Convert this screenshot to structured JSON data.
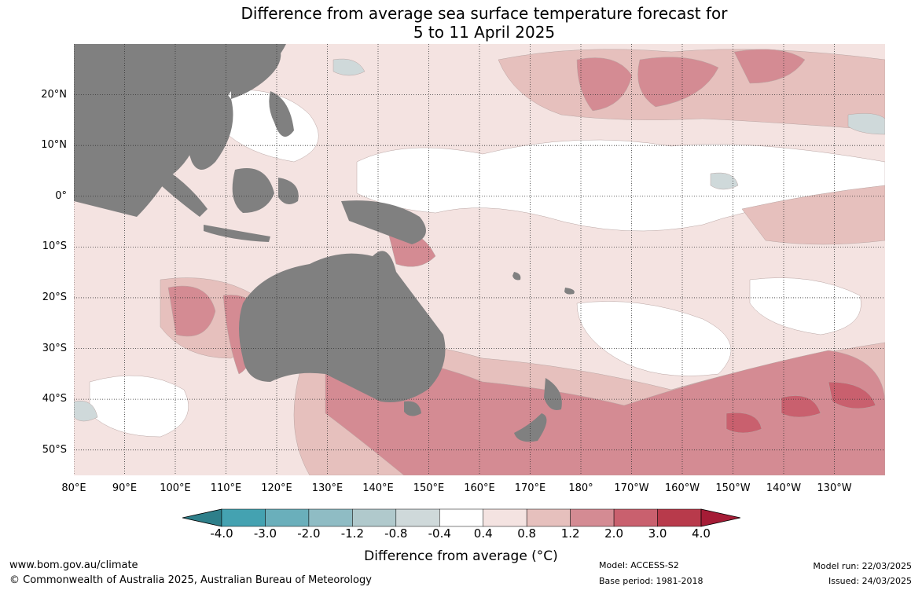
{
  "title": {
    "line1": "Difference from average sea surface temperature forecast for",
    "line2": "5 to 11 April 2025"
  },
  "map": {
    "lat_labels": [
      "20°N",
      "10°N",
      "0°",
      "10°S",
      "20°S",
      "30°S",
      "40°S",
      "50°S"
    ],
    "lon_labels": [
      "80°E",
      "90°E",
      "100°E",
      "110°E",
      "120°E",
      "130°E",
      "140°E",
      "150°E",
      "160°E",
      "170°E",
      "180°",
      "170°W",
      "160°W",
      "150°W",
      "140°W",
      "130°W"
    ],
    "lat_values": [
      20,
      10,
      0,
      -10,
      -20,
      -30,
      -40,
      -50
    ],
    "lon_values": [
      80,
      90,
      100,
      110,
      120,
      130,
      140,
      150,
      160,
      170,
      180,
      190,
      200,
      210,
      220,
      230
    ],
    "extent": {
      "lon_min": 80,
      "lon_max": 240,
      "lat_min": -55,
      "lat_max": 30
    },
    "land_color": "#808080"
  },
  "colorbar": {
    "labels": [
      "-4.0",
      "-3.0",
      "-2.0",
      "-1.2",
      "-0.8",
      "-0.4",
      "0.4",
      "0.8",
      "1.2",
      "2.0",
      "3.0",
      "4.0"
    ],
    "colors": [
      "#2e7f8a",
      "#44a2b1",
      "#6aafbb",
      "#8fbcc4",
      "#b0c9cc",
      "#cfd9da",
      "#ffffff",
      "#f4e3e1",
      "#e6c0bd",
      "#d48b93",
      "#c9606e",
      "#b83a4b",
      "#a51c36"
    ],
    "title": "Difference from average (°C)"
  },
  "footer": {
    "website": "www.bom.gov.au/climate",
    "copyright": "© Commonwealth of Australia 2025, Australian Bureau of Meteorology",
    "model": "Model: ACCESS-S2",
    "base_period": "Base period: 1981-2018",
    "model_run": "Model run: 22/03/2025",
    "issued": "Issued: 24/03/2025"
  }
}
